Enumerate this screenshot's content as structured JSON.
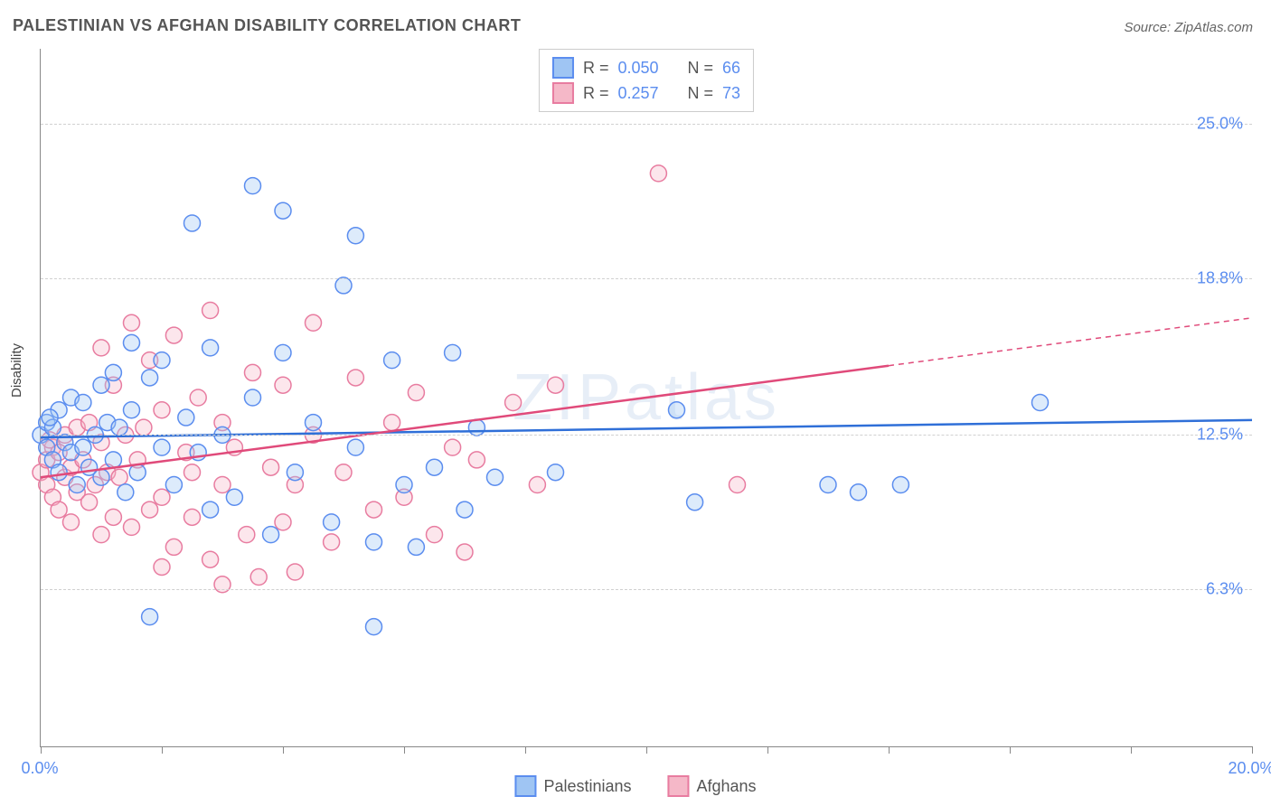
{
  "title": "PALESTINIAN VS AFGHAN DISABILITY CORRELATION CHART",
  "source": "Source: ZipAtlas.com",
  "ylabel": "Disability",
  "watermark": "ZIPatlas",
  "chart": {
    "type": "scatter",
    "xlim": [
      0,
      20
    ],
    "ylim": [
      0,
      28
    ],
    "x_ticks": [
      0,
      2,
      4,
      6,
      8,
      10,
      12,
      14,
      16,
      18,
      20
    ],
    "x_tick_labels": {
      "0": "0.0%",
      "20": "20.0%"
    },
    "y_gridlines": [
      6.3,
      12.5,
      18.8,
      25.0
    ],
    "y_tick_labels": [
      "6.3%",
      "12.5%",
      "18.8%",
      "25.0%"
    ],
    "background_color": "#ffffff",
    "grid_color": "#d0d0d0",
    "axis_label_color": "#5b8def",
    "axis_label_fontsize": 18,
    "title_fontsize": 18,
    "title_color": "#555555",
    "marker_radius": 9,
    "marker_stroke_width": 1.5,
    "marker_fill_opacity": 0.35,
    "trend_line_width": 2.5,
    "series": {
      "palestinians": {
        "label": "Palestinians",
        "fill": "#9fc5f3",
        "stroke": "#5b8def",
        "line_color": "#2f6fd8",
        "R": "0.050",
        "N": "66",
        "trend": {
          "x1": 0,
          "y1": 12.4,
          "x2": 20,
          "y2": 13.1,
          "dashed_from_x": null
        },
        "points": [
          [
            0.0,
            12.5
          ],
          [
            0.1,
            12.0
          ],
          [
            0.1,
            13.0
          ],
          [
            0.2,
            11.5
          ],
          [
            0.2,
            12.8
          ],
          [
            0.3,
            11.0
          ],
          [
            0.3,
            13.5
          ],
          [
            0.4,
            12.2
          ],
          [
            0.5,
            11.8
          ],
          [
            0.5,
            14.0
          ],
          [
            0.6,
            10.5
          ],
          [
            0.7,
            12.0
          ],
          [
            0.7,
            13.8
          ],
          [
            0.8,
            11.2
          ],
          [
            0.9,
            12.5
          ],
          [
            1.0,
            14.5
          ],
          [
            1.0,
            10.8
          ],
          [
            1.1,
            13.0
          ],
          [
            1.2,
            11.5
          ],
          [
            1.2,
            15.0
          ],
          [
            1.3,
            12.8
          ],
          [
            1.4,
            10.2
          ],
          [
            1.5,
            13.5
          ],
          [
            1.5,
            16.2
          ],
          [
            1.6,
            11.0
          ],
          [
            1.8,
            14.8
          ],
          [
            1.8,
            5.2
          ],
          [
            2.0,
            12.0
          ],
          [
            2.0,
            15.5
          ],
          [
            2.2,
            10.5
          ],
          [
            2.4,
            13.2
          ],
          [
            2.5,
            21.0
          ],
          [
            2.6,
            11.8
          ],
          [
            2.8,
            9.5
          ],
          [
            2.8,
            16.0
          ],
          [
            3.0,
            12.5
          ],
          [
            3.2,
            10.0
          ],
          [
            3.5,
            14.0
          ],
          [
            3.5,
            22.5
          ],
          [
            3.8,
            8.5
          ],
          [
            4.0,
            21.5
          ],
          [
            4.0,
            15.8
          ],
          [
            4.2,
            11.0
          ],
          [
            4.5,
            13.0
          ],
          [
            4.8,
            9.0
          ],
          [
            5.0,
            18.5
          ],
          [
            5.2,
            12.0
          ],
          [
            5.2,
            20.5
          ],
          [
            5.5,
            8.2
          ],
          [
            5.5,
            4.8
          ],
          [
            5.8,
            15.5
          ],
          [
            6.0,
            10.5
          ],
          [
            6.2,
            8.0
          ],
          [
            6.5,
            11.2
          ],
          [
            6.8,
            15.8
          ],
          [
            7.0,
            9.5
          ],
          [
            7.2,
            12.8
          ],
          [
            7.5,
            10.8
          ],
          [
            8.5,
            11.0
          ],
          [
            10.5,
            13.5
          ],
          [
            10.8,
            9.8
          ],
          [
            13.0,
            10.5
          ],
          [
            13.5,
            10.2
          ],
          [
            14.2,
            10.5
          ],
          [
            16.5,
            13.8
          ],
          [
            0.15,
            13.2
          ]
        ]
      },
      "afghans": {
        "label": "Afghans",
        "fill": "#f5b8c8",
        "stroke": "#e87ca0",
        "line_color": "#e04a7a",
        "R": "0.257",
        "N": "73",
        "trend": {
          "x1": 0,
          "y1": 10.8,
          "x2": 20,
          "y2": 17.2,
          "dashed_from_x": 14.0
        },
        "points": [
          [
            0.0,
            11.0
          ],
          [
            0.1,
            11.5
          ],
          [
            0.1,
            10.5
          ],
          [
            0.2,
            12.0
          ],
          [
            0.2,
            10.0
          ],
          [
            0.3,
            11.8
          ],
          [
            0.3,
            9.5
          ],
          [
            0.4,
            12.5
          ],
          [
            0.4,
            10.8
          ],
          [
            0.5,
            11.2
          ],
          [
            0.5,
            9.0
          ],
          [
            0.6,
            12.8
          ],
          [
            0.6,
            10.2
          ],
          [
            0.7,
            11.5
          ],
          [
            0.8,
            9.8
          ],
          [
            0.8,
            13.0
          ],
          [
            0.9,
            10.5
          ],
          [
            1.0,
            12.2
          ],
          [
            1.0,
            8.5
          ],
          [
            1.1,
            11.0
          ],
          [
            1.2,
            9.2
          ],
          [
            1.2,
            14.5
          ],
          [
            1.3,
            10.8
          ],
          [
            1.4,
            12.5
          ],
          [
            1.5,
            8.8
          ],
          [
            1.5,
            17.0
          ],
          [
            1.6,
            11.5
          ],
          [
            1.8,
            9.5
          ],
          [
            1.8,
            15.5
          ],
          [
            2.0,
            10.0
          ],
          [
            2.0,
            13.5
          ],
          [
            2.2,
            8.0
          ],
          [
            2.2,
            16.5
          ],
          [
            2.4,
            11.8
          ],
          [
            2.5,
            9.2
          ],
          [
            2.6,
            14.0
          ],
          [
            2.8,
            7.5
          ],
          [
            2.8,
            17.5
          ],
          [
            3.0,
            10.5
          ],
          [
            3.0,
            6.5
          ],
          [
            3.2,
            12.0
          ],
          [
            3.4,
            8.5
          ],
          [
            3.5,
            15.0
          ],
          [
            3.6,
            6.8
          ],
          [
            3.8,
            11.2
          ],
          [
            4.0,
            9.0
          ],
          [
            4.0,
            14.5
          ],
          [
            4.2,
            7.0
          ],
          [
            4.5,
            12.5
          ],
          [
            4.5,
            17.0
          ],
          [
            4.8,
            8.2
          ],
          [
            5.0,
            11.0
          ],
          [
            5.2,
            14.8
          ],
          [
            5.5,
            9.5
          ],
          [
            5.8,
            13.0
          ],
          [
            6.0,
            10.0
          ],
          [
            6.2,
            14.2
          ],
          [
            6.5,
            8.5
          ],
          [
            6.8,
            12.0
          ],
          [
            7.0,
            7.8
          ],
          [
            7.2,
            11.5
          ],
          [
            7.8,
            13.8
          ],
          [
            8.2,
            10.5
          ],
          [
            8.5,
            14.5
          ],
          [
            10.2,
            23.0
          ],
          [
            11.5,
            10.5
          ],
          [
            1.0,
            16.0
          ],
          [
            2.0,
            7.2
          ],
          [
            3.0,
            13.0
          ],
          [
            4.2,
            10.5
          ],
          [
            1.7,
            12.8
          ],
          [
            2.5,
            11.0
          ],
          [
            0.15,
            12.3
          ]
        ]
      }
    }
  },
  "stats_box": {
    "rows": [
      {
        "swatch_fill": "#9fc5f3",
        "swatch_stroke": "#5b8def",
        "r_label": "R =",
        "r_val": "0.050",
        "n_label": "N =",
        "n_val": "66"
      },
      {
        "swatch_fill": "#f5b8c8",
        "swatch_stroke": "#e87ca0",
        "r_label": "R =",
        "r_val": "0.257",
        "n_label": "N =",
        "n_val": "73"
      }
    ]
  },
  "legend": [
    {
      "swatch_fill": "#9fc5f3",
      "swatch_stroke": "#5b8def",
      "label": "Palestinians"
    },
    {
      "swatch_fill": "#f5b8c8",
      "swatch_stroke": "#e87ca0",
      "label": "Afghans"
    }
  ]
}
